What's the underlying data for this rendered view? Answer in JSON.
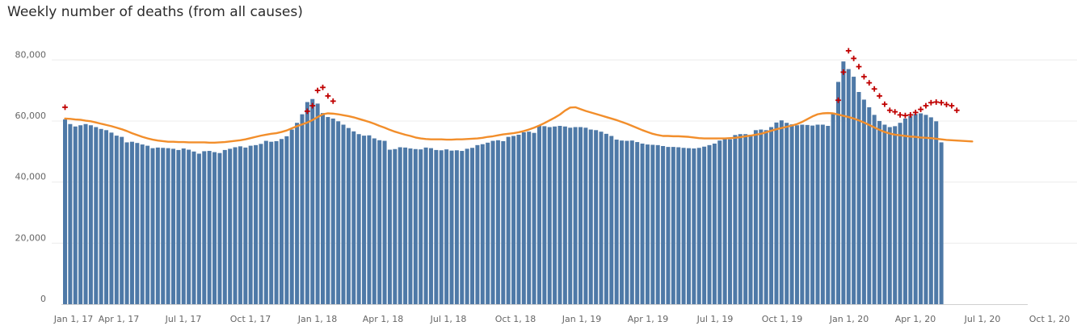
{
  "chart_data": {
    "type": "bar",
    "title": "Weekly number of deaths (from all causes)",
    "xlabel": "",
    "ylabel": "",
    "ylim": [
      0,
      88000
    ],
    "y_ticks": [
      0,
      20000,
      40000,
      60000,
      80000
    ],
    "y_tick_labels": [
      "0",
      "20,000",
      "40,000",
      "60,000",
      "80,000"
    ],
    "x_tick_labels": [
      "Jan 1, 17",
      "Apr 1, 17",
      "Jul 1, 17",
      "Oct 1, 17",
      "Jan 1, 18",
      "Apr 1, 18",
      "Jul 1, 18",
      "Oct 1, 18",
      "Jan 1, 19",
      "Apr 1, 19",
      "Jul 1, 19",
      "Oct 1, 19",
      "Jan 1, 20",
      "Apr 1, 20",
      "Jul 1, 20",
      "Oct 1, 20"
    ],
    "grid": "horizontal",
    "colors": {
      "bars": "#4e79a7",
      "line": "#f28e2b",
      "excess": "#c00000"
    },
    "series": [
      {
        "type": "bar",
        "values": [
          60500,
          59000,
          58200,
          58600,
          59000,
          58600,
          58000,
          57400,
          57000,
          56200,
          55200,
          54800,
          53000,
          53200,
          52800,
          52300,
          51900,
          51100,
          51300,
          51200,
          51100,
          50900,
          50500,
          51000,
          50600,
          50000,
          49300,
          50100,
          50200,
          49800,
          49500,
          50500,
          50900,
          51400,
          51700,
          51300,
          51900,
          52100,
          52500,
          53500,
          53200,
          53400,
          54100,
          55000,
          57200,
          59400,
          62200,
          66200,
          67200,
          65700,
          62600,
          61300,
          60800,
          59900,
          58800,
          57700,
          56600,
          55700,
          55200,
          55300,
          54300,
          53700,
          53500,
          50600,
          50800,
          51400,
          51300,
          51000,
          50800,
          50700,
          51300,
          51100,
          50500,
          50400,
          50700,
          50300,
          50400,
          50200,
          50900,
          51200,
          52100,
          52400,
          52900,
          53500,
          53700,
          53400,
          54800,
          55100,
          55500,
          56300,
          56500,
          56100,
          58400,
          58300,
          58000,
          58200,
          58400,
          58200,
          57800,
          58000,
          58000,
          57800,
          57200,
          57000,
          56500,
          55800,
          55100,
          53900,
          53600,
          53500,
          53600,
          53100,
          52600,
          52300,
          52200,
          52100,
          51800,
          51500,
          51500,
          51400,
          51200,
          51100,
          51000,
          51200,
          51600,
          52100,
          52600,
          53600,
          54200,
          54000,
          55400,
          55700,
          55700,
          55500,
          57000,
          57200,
          57000,
          58000,
          59500,
          60200,
          59400,
          58900,
          58600,
          58800,
          58700,
          58500,
          58800,
          58800,
          58400,
          62700,
          72800,
          79500,
          77000,
          74500,
          69500,
          67000,
          64500,
          62000,
          60000,
          58800,
          58000,
          58300,
          59400,
          60800,
          61600,
          62300,
          62500,
          62000,
          61200,
          59900,
          53000
        ]
      },
      {
        "type": "line",
        "values": [
          60800,
          60700,
          60500,
          60400,
          60100,
          59900,
          59500,
          59100,
          58700,
          58300,
          57800,
          57300,
          56700,
          56000,
          55400,
          54800,
          54300,
          53900,
          53600,
          53400,
          53200,
          53200,
          53100,
          53100,
          53000,
          53000,
          53000,
          53000,
          52900,
          52900,
          53000,
          53100,
          53300,
          53500,
          53700,
          54000,
          54400,
          54800,
          55200,
          55500,
          55800,
          56000,
          56400,
          56900,
          57600,
          58300,
          58900,
          59500,
          60300,
          61300,
          62200,
          62500,
          62400,
          62200,
          61900,
          61600,
          61200,
          60700,
          60200,
          59700,
          59100,
          58400,
          57800,
          57100,
          56500,
          56000,
          55500,
          55100,
          54600,
          54300,
          54100,
          54000,
          54000,
          54000,
          53900,
          53900,
          54000,
          54000,
          54100,
          54200,
          54300,
          54500,
          54800,
          55000,
          55300,
          55600,
          55800,
          56000,
          56300,
          56700,
          57200,
          57800,
          58500,
          59300,
          60200,
          61100,
          62100,
          63400,
          64400,
          64500,
          63900,
          63300,
          62800,
          62300,
          61800,
          61300,
          60800,
          60300,
          59700,
          59100,
          58400,
          57700,
          57000,
          56400,
          55800,
          55400,
          55100,
          55100,
          55000,
          55000,
          54900,
          54800,
          54600,
          54400,
          54300,
          54300,
          54300,
          54300,
          54300,
          54400,
          54500,
          54700,
          55000,
          55200,
          55500,
          55800,
          56300,
          56800,
          57300,
          57700,
          58100,
          58500,
          59000,
          59700,
          60600,
          61500,
          62200,
          62500,
          62600,
          62500,
          62100,
          61700,
          61300,
          60800,
          60200,
          59500,
          58700,
          57900,
          57100,
          56400,
          55900,
          55500,
          55300,
          55100,
          54900,
          54800,
          54600,
          54500,
          54400,
          54200,
          54000,
          53800,
          53700,
          53600,
          53500,
          53400,
          53300
        ]
      },
      {
        "type": "scatter",
        "marker": "+",
        "points": [
          [
            0,
            64500
          ],
          [
            47,
            63200
          ],
          [
            48,
            65000
          ],
          [
            49,
            70000
          ],
          [
            50,
            71000
          ],
          [
            51,
            68200
          ],
          [
            52,
            66500
          ],
          [
            150,
            66800
          ],
          [
            151,
            76000
          ],
          [
            152,
            83000
          ],
          [
            153,
            80500
          ],
          [
            154,
            77800
          ],
          [
            155,
            74500
          ],
          [
            156,
            72500
          ],
          [
            157,
            70500
          ],
          [
            158,
            68200
          ],
          [
            159,
            65500
          ],
          [
            160,
            63500
          ],
          [
            161,
            63000
          ],
          [
            162,
            62000
          ],
          [
            163,
            61800
          ],
          [
            164,
            62000
          ],
          [
            165,
            62800
          ],
          [
            166,
            63800
          ],
          [
            167,
            65000
          ],
          [
            168,
            66000
          ],
          [
            169,
            66200
          ],
          [
            170,
            66000
          ],
          [
            171,
            65400
          ],
          [
            172,
            65000
          ],
          [
            173,
            63500
          ]
        ]
      }
    ]
  }
}
